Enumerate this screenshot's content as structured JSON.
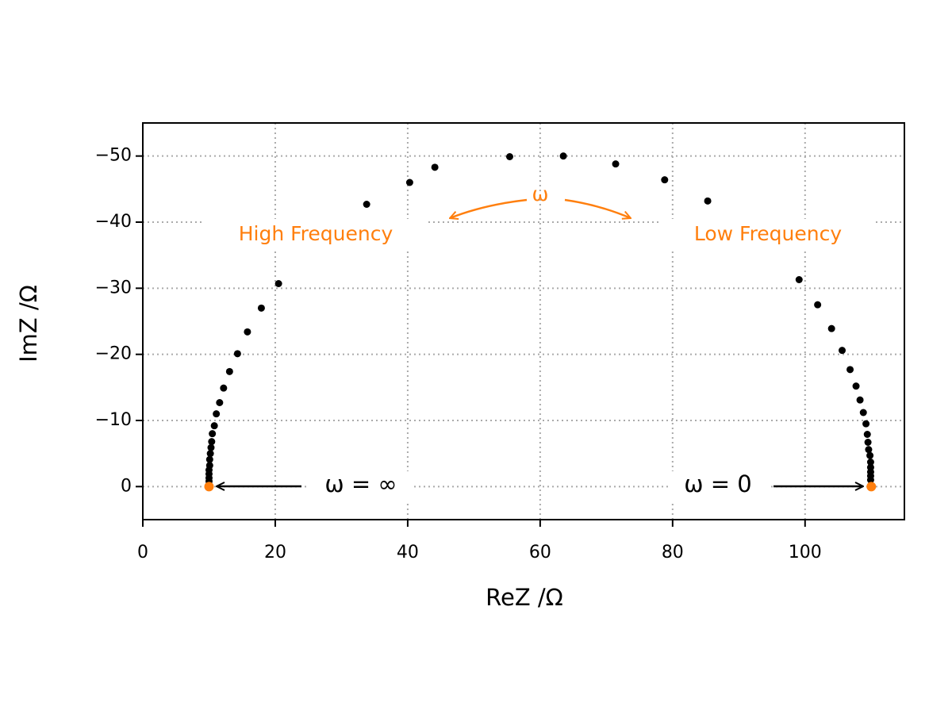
{
  "chart_data": {
    "type": "scatter",
    "x_label": "ReZ /Ω",
    "y_label": "ImZ /Ω",
    "xlim": [
      0,
      115
    ],
    "xticks": [
      0,
      20,
      40,
      60,
      80,
      100
    ],
    "ylim": [
      -55,
      5
    ],
    "y_inverted": true,
    "yticks": [
      {
        "value": -50,
        "label": "−50"
      },
      {
        "value": -40,
        "label": "−40"
      },
      {
        "value": -30,
        "label": "−30"
      },
      {
        "value": -20,
        "label": "−20"
      },
      {
        "value": -10,
        "label": "−10"
      },
      0
    ],
    "grid": true,
    "series": [
      {
        "color": "#000000",
        "x": [
          10.0,
          10.0,
          10.0,
          10.0,
          10.1,
          10.1,
          10.2,
          10.3,
          10.4,
          10.5,
          10.8,
          11.1,
          11.6,
          12.2,
          13.1,
          14.3,
          15.8,
          17.9,
          20.5,
          33.8,
          40.3,
          44.1,
          55.4,
          63.5,
          71.4,
          78.8,
          85.3,
          99.1,
          101.9,
          104.0,
          105.6,
          106.8,
          107.7,
          108.3,
          108.8,
          109.2,
          109.4,
          109.5,
          109.6,
          109.8,
          109.9,
          109.9,
          109.9,
          109.9,
          109.9
        ],
        "values": [
          -0.8,
          -1.3,
          -1.9,
          -2.5,
          -3.2,
          -4.1,
          -5.0,
          -5.9,
          -6.8,
          -8.0,
          -9.2,
          -11.0,
          -12.7,
          -14.9,
          -17.4,
          -20.1,
          -23.4,
          -27.0,
          -30.7,
          -42.7,
          -46.0,
          -48.3,
          -49.9,
          -50.0,
          -48.8,
          -46.4,
          -43.2,
          -31.3,
          -27.5,
          -23.9,
          -20.6,
          -17.7,
          -15.2,
          -13.1,
          -11.2,
          -9.5,
          -7.9,
          -6.7,
          -5.6,
          -4.7,
          -3.7,
          -2.9,
          -2.2,
          -1.6,
          -1.0
        ]
      },
      {
        "color": "#ff7f0e",
        "x": [
          10,
          110
        ],
        "values": [
          0,
          0
        ]
      }
    ],
    "annotations": [
      "High Frequency",
      "Low Frequency",
      "ω",
      "ω = ∞",
      "ω = 0"
    ]
  }
}
